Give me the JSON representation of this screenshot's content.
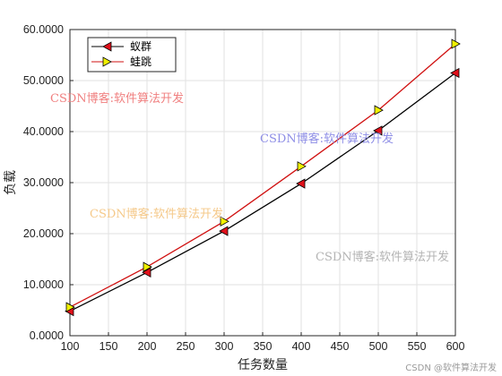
{
  "chart_data": {
    "type": "line",
    "title": "",
    "xlabel": "任务数量",
    "ylabel": "负载",
    "x": [
      100,
      200,
      300,
      400,
      500,
      600
    ],
    "xlim": [
      100,
      600
    ],
    "ylim": [
      0,
      60
    ],
    "x_ticks": [
      "100",
      "150",
      "200",
      "250",
      "300",
      "350",
      "400",
      "450",
      "500",
      "550",
      "600"
    ],
    "y_ticks": [
      "0.0000",
      "10.0000",
      "20.0000",
      "30.0000",
      "40.0000",
      "50.0000",
      "60.0000"
    ],
    "grid": true,
    "legend_position": "top-left",
    "series": [
      {
        "name": "蚁群",
        "values": [
          4.8,
          12.4,
          20.5,
          29.8,
          40.2,
          51.5
        ],
        "color": "#000000",
        "marker_color": "#e0101a",
        "marker": "triangle-left"
      },
      {
        "name": "蛙跳",
        "values": [
          5.6,
          13.5,
          22.4,
          33.2,
          44.2,
          57.2
        ],
        "color": "#d01010",
        "marker_color": "#f0f000",
        "marker": "triangle-right"
      }
    ]
  },
  "watermarks": [
    {
      "text": "CSDN博客:软件算法开发",
      "color": "#f08080"
    },
    {
      "text": "CSDN博客:软件算法开发",
      "color": "#8e8ee6"
    },
    {
      "text": "CSDN博客:软件算法开发",
      "color": "#f5c98a"
    },
    {
      "text": "CSDN博客:软件算法开发",
      "color": "#b4b4b4"
    }
  ],
  "credit": "CSDN @软件算法开发"
}
